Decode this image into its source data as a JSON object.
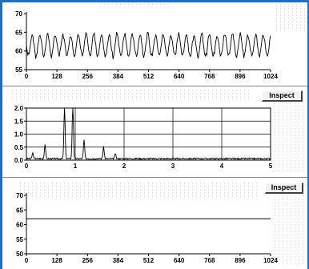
{
  "panels": {
    "top": {
      "y_ticks": [
        "70",
        "65",
        "60",
        "55"
      ],
      "x_ticks": [
        "0",
        "128",
        "256",
        "384",
        "512",
        "640",
        "768",
        "896",
        "1024"
      ],
      "signal_mean": 61.5,
      "signal_amplitude": 3.5,
      "signal_samples": 1024
    },
    "middle": {
      "inspect_label": "Inspect",
      "y_ticks": [
        "2.0",
        "1.5",
        "1.0",
        "0.5",
        "0.0"
      ],
      "x_ticks": [
        "0",
        "1",
        "2",
        "3",
        "4",
        "5"
      ]
    },
    "bottom": {
      "inspect_label": "Inspect",
      "y_ticks": [
        "70",
        "65",
        "60",
        "55",
        "50"
      ],
      "x_ticks": [
        "0",
        "128",
        "256",
        "384",
        "512",
        "640",
        "768",
        "896",
        "1024"
      ],
      "flat_value": 62
    }
  },
  "chart_data": [
    {
      "type": "line",
      "x_range": [
        0,
        1024
      ],
      "ylim": [
        55,
        70
      ],
      "yticks": [
        55,
        60,
        65,
        70
      ],
      "xticks": [
        0,
        128,
        256,
        384,
        512,
        640,
        768,
        896,
        1024
      ],
      "series": [
        {
          "description_only": true,
          "mean": 61.5,
          "amplitude": 3.5
        }
      ]
    },
    {
      "type": "line",
      "x_range": [
        0,
        5
      ],
      "ylim": [
        0,
        2.0
      ],
      "yticks": [
        0,
        0.5,
        1.0,
        1.5,
        2.0
      ],
      "xticks": [
        0,
        1,
        2,
        3,
        4,
        5
      ],
      "grid": true,
      "peaks": [
        {
          "x": 0.13,
          "y": 0.22
        },
        {
          "x": 0.38,
          "y": 0.55
        },
        {
          "x": 0.78,
          "y": 2.0
        },
        {
          "x": 0.95,
          "y": 2.0
        },
        {
          "x": 1.18,
          "y": 0.72
        },
        {
          "x": 1.58,
          "y": 0.45
        },
        {
          "x": 1.82,
          "y": 0.2
        }
      ]
    },
    {
      "type": "line",
      "x_range": [
        0,
        1024
      ],
      "ylim": [
        50,
        70
      ],
      "yticks": [
        50,
        55,
        60,
        65,
        70
      ],
      "xticks": [
        0,
        128,
        256,
        384,
        512,
        640,
        768,
        896,
        1024
      ],
      "series": [
        {
          "values_constant": 62
        }
      ]
    }
  ]
}
